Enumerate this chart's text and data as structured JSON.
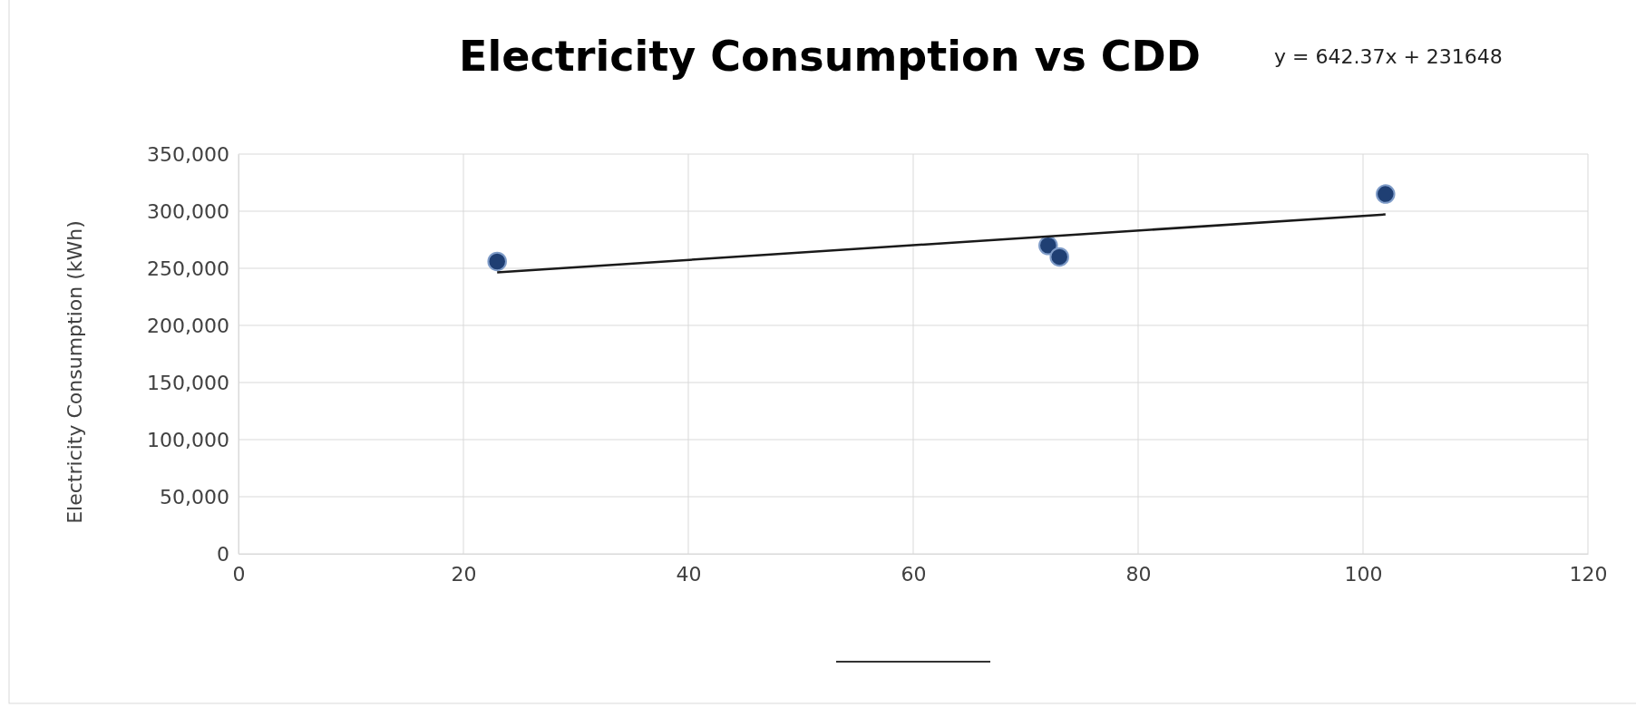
{
  "chart_data": {
    "type": "scatter",
    "title": "Electricity Consumption vs CDD",
    "ylabel": "Electricity Consumption (kWh)",
    "annotations": [
      "y = 642.37x + 231648"
    ],
    "series": [
      {
        "color": "#1f3f73",
        "x": [
          23,
          72,
          73,
          102
        ],
        "values": [
          256000,
          270000,
          260000,
          315000
        ]
      },
      {
        "type": "line",
        "color": "#1a1a1a",
        "marker": "none",
        "x": [
          23,
          102
        ],
        "values": [
          246400,
          297200
        ]
      }
    ],
    "xlim": [
      0,
      120
    ],
    "xticks": [
      0,
      20,
      40,
      60,
      80,
      100,
      120
    ],
    "ylim": [
      0,
      350000
    ],
    "yticks": [
      {
        "value": 0,
        "label": "0"
      },
      {
        "value": 50000,
        "label": "50,000"
      },
      {
        "value": 100000,
        "label": "100,000"
      },
      {
        "value": 150000,
        "label": "150,000"
      },
      {
        "value": 200000,
        "label": "200,000"
      },
      {
        "value": 250000,
        "label": "250,000"
      },
      {
        "value": 300000,
        "label": "300,000"
      },
      {
        "value": 350000,
        "label": "350,000"
      }
    ],
    "grid": true,
    "marker": "circle"
  }
}
